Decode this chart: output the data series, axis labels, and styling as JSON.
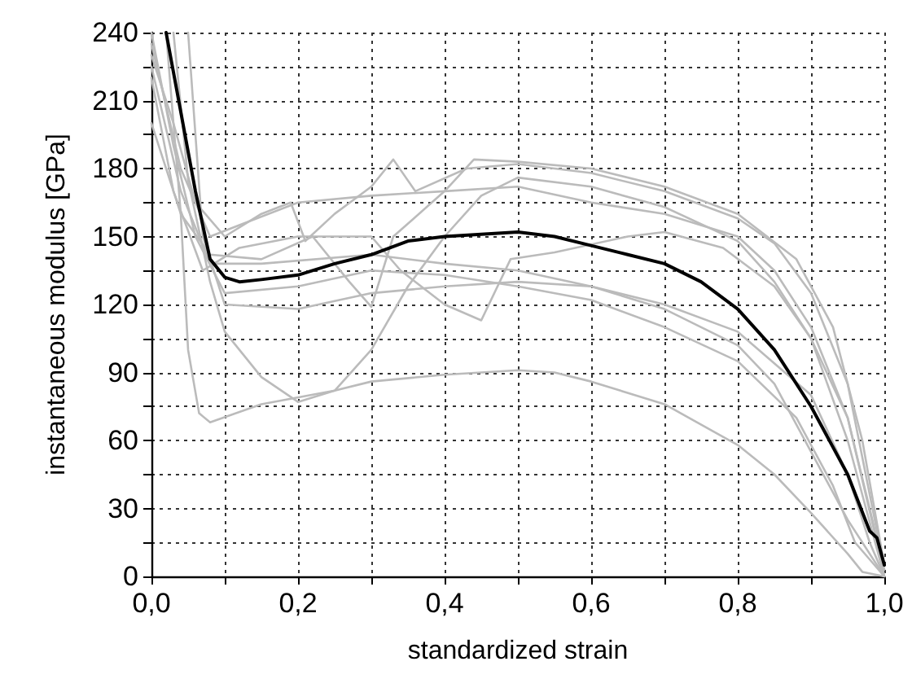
{
  "chart_data": {
    "type": "line",
    "xlabel": "standardized strain",
    "ylabel": "instantaneous modulus [GPa]",
    "xlim": [
      0,
      1
    ],
    "ylim": [
      0,
      240
    ],
    "xticks": [
      {
        "value": 0,
        "label": "0,0"
      },
      {
        "value": 0.1,
        "label": null
      },
      {
        "value": 0.2,
        "label": "0,2"
      },
      {
        "value": 0.3,
        "label": null
      },
      {
        "value": 0.4,
        "label": "0,4"
      },
      {
        "value": 0.5,
        "label": null
      },
      {
        "value": 0.6,
        "label": "0,6"
      },
      {
        "value": 0.7,
        "label": null
      },
      {
        "value": 0.8,
        "label": "0,8"
      },
      {
        "value": 0.9,
        "label": null
      },
      {
        "value": 1,
        "label": "1,0"
      }
    ],
    "yticks": [
      0,
      {
        "value": 15,
        "label": null
      },
      30,
      {
        "value": 45,
        "label": null
      },
      60,
      {
        "value": 75,
        "label": null
      },
      90,
      {
        "value": 105,
        "label": null
      },
      120,
      {
        "value": 135,
        "label": null
      },
      150,
      {
        "value": 165,
        "label": null
      },
      180,
      {
        "value": 195,
        "label": null
      },
      210,
      {
        "value": 225,
        "label": null
      },
      240
    ],
    "grid": true,
    "marker": "none",
    "line_style": "solid",
    "series": [
      {
        "color": "#bbbbbb",
        "x": [
          0.02,
          0.04,
          0.05,
          0.065,
          0.08,
          0.15,
          0.25,
          0.3,
          0.4,
          0.5,
          0.55,
          0.6,
          0.7,
          0.8,
          0.85,
          0.9,
          0.95,
          0.97,
          1.0
        ],
        "values": [
          240,
          160,
          100,
          72,
          68,
          76,
          82,
          86,
          89,
          91,
          90,
          86,
          76,
          58,
          45,
          28,
          10,
          2,
          0
        ]
      },
      {
        "color": "#bbbbbb",
        "x": [
          0.03,
          0.05,
          0.08,
          0.1,
          0.15,
          0.2,
          0.25,
          0.3,
          0.35,
          0.4,
          0.45,
          0.5,
          0.6,
          0.7,
          0.8,
          0.85,
          0.9,
          0.95,
          1.0
        ],
        "values": [
          240,
          175,
          130,
          108,
          88,
          77,
          82,
          100,
          128,
          150,
          168,
          176,
          172,
          163,
          148,
          130,
          105,
          60,
          0
        ]
      },
      {
        "color": "#bbbbbb",
        "x": [
          0.0,
          0.03,
          0.06,
          0.1,
          0.15,
          0.19,
          0.21,
          0.25,
          0.3,
          0.33,
          0.36,
          0.43,
          0.5,
          0.6,
          0.7,
          0.8,
          0.85,
          0.9,
          0.95,
          0.99,
          1.0
        ],
        "values": [
          230,
          200,
          165,
          150,
          160,
          165,
          148,
          160,
          172,
          184,
          170,
          180,
          182,
          178,
          170,
          158,
          147,
          125,
          85,
          20,
          5
        ]
      },
      {
        "color": "#bbbbbb",
        "x": [
          0.0,
          0.04,
          0.08,
          0.15,
          0.22,
          0.27,
          0.3,
          0.33,
          0.4,
          0.44,
          0.5,
          0.6,
          0.7,
          0.8,
          0.88,
          0.93,
          0.97,
          1.0
        ],
        "values": [
          200,
          160,
          142,
          140,
          150,
          130,
          119,
          150,
          170,
          184,
          183,
          180,
          172,
          160,
          140,
          110,
          60,
          5
        ]
      },
      {
        "color": "#bbbbbb",
        "x": [
          0.0,
          0.03,
          0.07,
          0.12,
          0.2,
          0.3,
          0.34,
          0.4,
          0.45,
          0.49,
          0.55,
          0.65,
          0.7,
          0.78,
          0.85,
          0.9,
          0.95,
          0.98,
          1.0
        ],
        "values": [
          220,
          170,
          135,
          145,
          150,
          150,
          135,
          120,
          113,
          140,
          143,
          150,
          152,
          145,
          128,
          105,
          70,
          30,
          3
        ]
      },
      {
        "color": "#bbbbbb",
        "x": [
          0.0,
          0.04,
          0.08,
          0.12,
          0.2,
          0.3,
          0.4,
          0.5,
          0.6,
          0.7,
          0.8,
          0.85,
          0.9,
          0.95,
          0.99,
          1.0
        ],
        "values": [
          235,
          180,
          150,
          155,
          165,
          168,
          170,
          172,
          165,
          160,
          150,
          135,
          110,
          70,
          15,
          0
        ]
      },
      {
        "color": "#bbbbbb",
        "x": [
          0.0,
          0.03,
          0.06,
          0.1,
          0.2,
          0.3,
          0.4,
          0.5,
          0.6,
          0.7,
          0.8,
          0.88,
          0.93,
          0.96,
          1.0
        ],
        "values": [
          240,
          190,
          150,
          125,
          128,
          135,
          133,
          128,
          122,
          110,
          95,
          70,
          40,
          15,
          0
        ]
      },
      {
        "color": "#bbbbbb",
        "x": [
          0.0,
          0.04,
          0.08,
          0.15,
          0.3,
          0.4,
          0.5,
          0.6,
          0.7,
          0.8,
          0.85,
          0.9,
          0.95,
          1.0
        ],
        "values": [
          225,
          170,
          138,
          138,
          142,
          138,
          135,
          128,
          118,
          102,
          85,
          55,
          25,
          0
        ]
      },
      {
        "color": "#bbbbbb",
        "x": [
          0.05,
          0.07,
          0.1,
          0.2,
          0.3,
          0.4,
          0.5,
          0.6,
          0.7,
          0.8,
          0.9,
          0.95,
          0.98,
          1.0
        ],
        "values": [
          240,
          150,
          120,
          118,
          125,
          128,
          130,
          128,
          120,
          108,
          80,
          45,
          15,
          0
        ]
      },
      {
        "color": "#000000",
        "x": [
          0.02,
          0.04,
          0.06,
          0.08,
          0.1,
          0.12,
          0.15,
          0.2,
          0.25,
          0.3,
          0.35,
          0.4,
          0.45,
          0.5,
          0.55,
          0.6,
          0.65,
          0.7,
          0.75,
          0.8,
          0.85,
          0.9,
          0.95,
          0.98,
          0.99,
          1.0
        ],
        "values": [
          240,
          205,
          170,
          140,
          132,
          130,
          131,
          133,
          138,
          142,
          148,
          150,
          151,
          152,
          150,
          146,
          142,
          138,
          130,
          118,
          100,
          75,
          45,
          20,
          17,
          5
        ]
      }
    ]
  }
}
